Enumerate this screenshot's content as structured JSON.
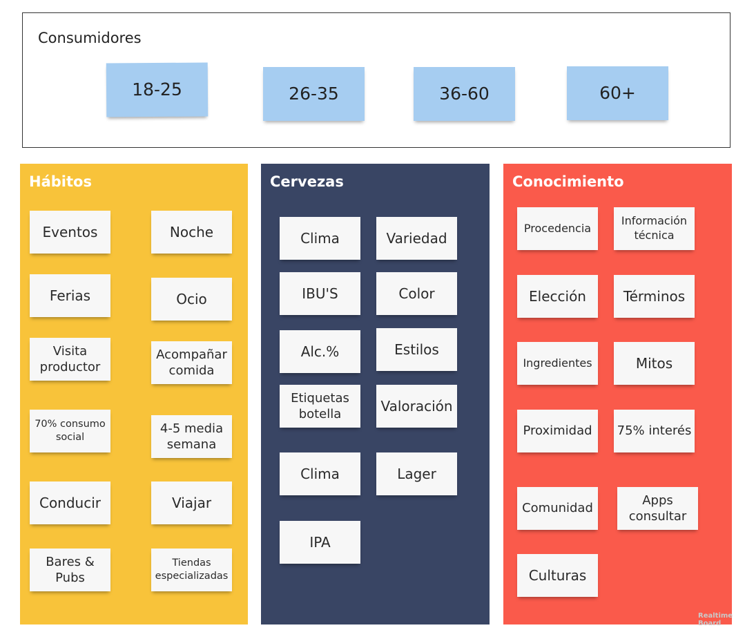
{
  "consumers": {
    "title": "Consumidores",
    "ages": [
      "18-25",
      "26-35",
      "36-60",
      "60+"
    ]
  },
  "habitos": {
    "title": "Hábitos",
    "items": [
      "Eventos",
      "Noche",
      "Ferias",
      "Ocio",
      "Visita productor",
      "Acompañar comida",
      "70% consumo social",
      "4-5 media semana",
      "Conducir",
      "Viajar",
      "Bares & Pubs",
      "Tiendas especializadas"
    ]
  },
  "cervezas": {
    "title": "Cervezas",
    "items": [
      "Clima",
      "Variedad",
      "IBU'S",
      "Color",
      "Alc.%",
      "Estilos",
      "Etiquetas botella",
      "Valoración",
      "Clima",
      "Lager",
      "IPA"
    ]
  },
  "conocimiento": {
    "title": "Conocimiento",
    "items": [
      "Procedencia",
      "Información técnica",
      "Elección",
      "Términos",
      "Ingredientes",
      "Mitos",
      "Proximidad",
      "75% interés",
      "Comunidad",
      "Apps consultar",
      "Culturas"
    ]
  },
  "watermark": {
    "line1": "Realtime",
    "line2": "Board"
  },
  "colors": {
    "habitos_bg": "#f8c33a",
    "cervezas_bg": "#394564",
    "conocimiento_bg": "#fa5a4b",
    "age_sticky": "#a6cdf1",
    "note_sticky": "#f7f7f7"
  }
}
